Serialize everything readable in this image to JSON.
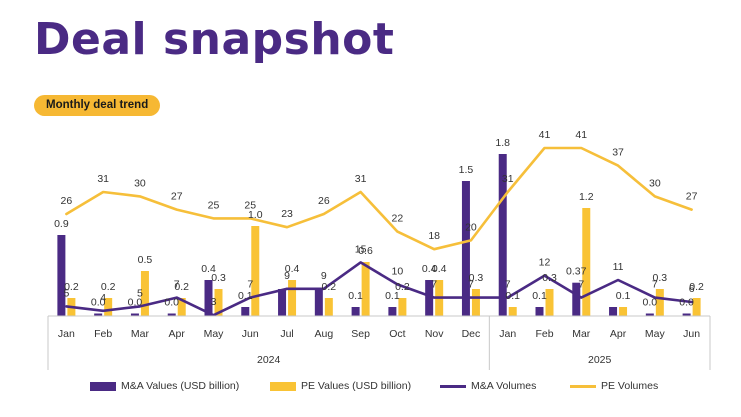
{
  "page": {
    "title": "Deal snapshot",
    "pill": "Monthly deal trend"
  },
  "colors": {
    "purple": "#4a2a84",
    "yellow": "#f9c335",
    "line_purple": "#4a2a84",
    "line_yellow": "#f6bf3a"
  },
  "chart_data": {
    "type": "bar",
    "categories": [
      "Jan",
      "Feb",
      "Mar",
      "Apr",
      "May",
      "Jun",
      "Jul",
      "Aug",
      "Sep",
      "Oct",
      "Nov",
      "Dec",
      "Jan",
      "Feb",
      "Mar",
      "Apr",
      "May",
      "Jun"
    ],
    "groups": [
      {
        "label": "2024",
        "count": 12
      },
      {
        "label": "2025",
        "count": 6
      }
    ],
    "series": [
      {
        "name": "M&A Values (USD billion)",
        "kind": "bar",
        "color": "#4a2a84",
        "values": [
          0.9,
          0.0,
          0.0,
          0.0,
          0.4,
          0.1,
          0.3,
          0.3,
          0.1,
          0.1,
          0.4,
          1.5,
          1.8,
          0.1,
          0.37,
          0.1,
          0.0,
          0.0
        ],
        "labels": [
          "0.9",
          "0.0",
          "0.0",
          "0.0",
          "0.4",
          "0.1",
          "",
          "",
          "0.1",
          "0.1",
          "0.4",
          "1.5",
          "1.8",
          "0.1",
          "0.37",
          "",
          "0.0",
          "0.0"
        ]
      },
      {
        "name": "PE Values (USD billion)",
        "kind": "bar",
        "color": "#f9c335",
        "values": [
          0.2,
          0.2,
          0.5,
          0.2,
          0.3,
          1.0,
          0.4,
          0.2,
          0.6,
          0.2,
          0.4,
          0.3,
          0.1,
          0.3,
          1.2,
          0.1,
          0.3,
          0.2
        ],
        "labels": [
          "0.2",
          "0.2",
          "0.5",
          "0.2",
          "0.3",
          "1.0",
          "0.4",
          "0.2",
          "0.6",
          "0.2",
          "0.4",
          "0.3",
          "0.1",
          "0.3",
          "1.2",
          "0.1",
          "0.3",
          "0.2"
        ]
      },
      {
        "name": "M&A Volumes",
        "kind": "line",
        "color": "#4a2a84",
        "values": [
          5,
          4,
          5,
          7,
          3,
          7,
          9,
          9,
          15,
          10,
          7,
          7,
          7,
          12,
          7,
          11,
          7,
          6
        ],
        "labels": [
          "5",
          "4",
          "5",
          "7",
          "3",
          "7",
          "9",
          "9",
          "15",
          "10",
          "7",
          "7",
          "7",
          "12",
          "7",
          "11",
          "7",
          "6"
        ]
      },
      {
        "name": "PE Volumes",
        "kind": "line",
        "color": "#f6bf3a",
        "values": [
          26,
          31,
          30,
          27,
          25,
          25,
          23,
          26,
          31,
          22,
          18,
          20,
          31,
          41,
          41,
          37,
          30,
          27
        ],
        "labels": [
          "26",
          "31",
          "30",
          "27",
          "25",
          "25",
          "23",
          "26",
          "31",
          "22",
          "18",
          "20",
          "31",
          "41",
          "41",
          "37",
          "30",
          "27"
        ]
      }
    ],
    "legend_position": "bottom",
    "grid": false
  }
}
